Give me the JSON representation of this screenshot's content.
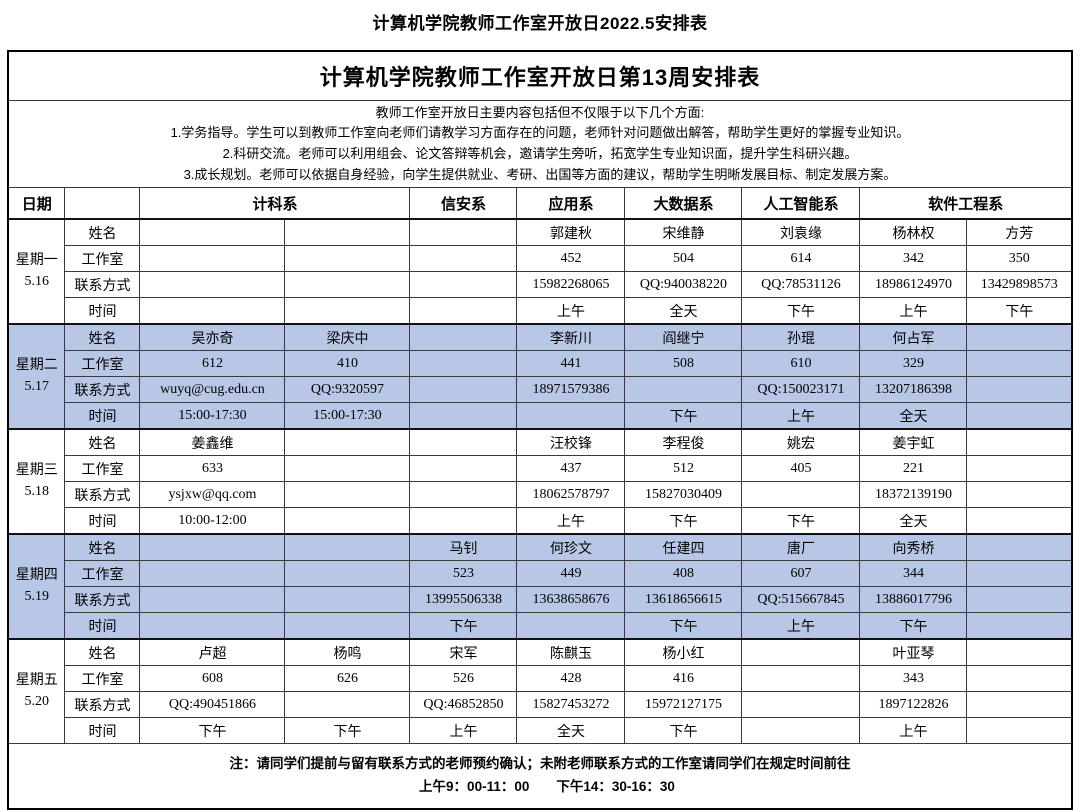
{
  "page_title": "计算机学院教师工作室开放日2022.5安排表",
  "table": {
    "title": "计算机学院教师工作室开放日第13周安排表",
    "description_lines": [
      "教师工作室开放日主要内容包括但不仅限于以下几个方面:",
      "1.学务指导。学生可以到教师工作室向老师们请教学习方面存在的问题，老师针对问题做出解答，帮助学生更好的掌握专业知识。",
      "2.科研交流。老师可以利用组会、论文答辩等机会，邀请学生旁听，拓宽学生专业知识面，提升学生科研兴趣。",
      "3.成长规划。老师可以依据自身经验，向学生提供就业、考研、出国等方面的建议，帮助学生明晰发展目标、制定发展方案。"
    ],
    "header": {
      "date_label": "日期",
      "departments": [
        {
          "label": "计科系",
          "span": 2
        },
        {
          "label": "信安系",
          "span": 1
        },
        {
          "label": "应用系",
          "span": 1
        },
        {
          "label": "大数据系",
          "span": 1
        },
        {
          "label": "人工智能系",
          "span": 1
        },
        {
          "label": "软件工程系",
          "span": 2
        }
      ]
    },
    "row_labels": [
      "姓名",
      "工作室",
      "联系方式",
      "时间"
    ],
    "highlight_color": "#b8c7e6",
    "days": [
      {
        "day": "星期一",
        "date": "5.16",
        "highlighted": false,
        "names": [
          "",
          "",
          "",
          "郭建秋",
          "宋维静",
          "刘袁缘",
          "杨林权",
          "方芳"
        ],
        "rooms": [
          "",
          "",
          "",
          "452",
          "504",
          "614",
          "342",
          "350"
        ],
        "contacts": [
          "",
          "",
          "",
          "15982268065",
          "QQ:940038220",
          "QQ:78531126",
          "18986124970",
          "13429898573"
        ],
        "times": [
          "",
          "",
          "",
          "上午",
          "全天",
          "下午",
          "上午",
          "下午"
        ]
      },
      {
        "day": "星期二",
        "date": "5.17",
        "highlighted": true,
        "names": [
          "吴亦奇",
          "梁庆中",
          "",
          "李新川",
          "阎继宁",
          "孙琨",
          "何占军",
          ""
        ],
        "rooms": [
          "612",
          "410",
          "",
          "441",
          "508",
          "610",
          "329",
          ""
        ],
        "contacts": [
          "wuyq@cug.edu.cn",
          "QQ:9320597",
          "",
          "18971579386",
          "",
          "QQ:150023171",
          "13207186398",
          ""
        ],
        "times": [
          "15:00-17:30",
          "15:00-17:30",
          "",
          "",
          "下午",
          "上午",
          "全天",
          ""
        ]
      },
      {
        "day": "星期三",
        "date": "5.18",
        "highlighted": false,
        "names": [
          "姜鑫维",
          "",
          "",
          "汪校锋",
          "李程俊",
          "姚宏",
          "姜宇虹",
          ""
        ],
        "rooms": [
          "633",
          "",
          "",
          "437",
          "512",
          "405",
          "221",
          ""
        ],
        "contacts": [
          "ysjxw@qq.com",
          "",
          "",
          "18062578797",
          "15827030409",
          "",
          "18372139190",
          ""
        ],
        "times": [
          "10:00-12:00",
          "",
          "",
          "上午",
          "下午",
          "下午",
          "全天",
          ""
        ]
      },
      {
        "day": "星期四",
        "date": "5.19",
        "highlighted": true,
        "names": [
          "",
          "",
          "马钊",
          "何珍文",
          "任建四",
          "唐厂",
          "向秀桥",
          ""
        ],
        "rooms": [
          "",
          "",
          "523",
          "449",
          "408",
          "607",
          "344",
          ""
        ],
        "contacts": [
          "",
          "",
          "13995506338",
          "13638658676",
          "13618656615",
          "QQ:515667845",
          "13886017796",
          ""
        ],
        "times": [
          "",
          "",
          "下午",
          "",
          "下午",
          "上午",
          "下午",
          ""
        ]
      },
      {
        "day": "星期五",
        "date": "5.20",
        "highlighted": false,
        "names": [
          "卢超",
          "杨鸣",
          "宋军",
          "陈麒玉",
          "杨小红",
          "",
          "叶亚琴",
          ""
        ],
        "rooms": [
          "608",
          "626",
          "526",
          "428",
          "416",
          "",
          "343",
          ""
        ],
        "contacts": [
          "QQ:490451866",
          "",
          "QQ:46852850",
          "15827453272",
          "15972127175",
          "",
          "1897122826",
          ""
        ],
        "times": [
          "下午",
          "下午",
          "上午",
          "全天",
          "下午",
          "",
          "上午",
          ""
        ]
      }
    ],
    "note_line1": "注：请同学们提前与留有联系方式的老师预约确认；未附老师联系方式的工作室请同学们在规定时间前往",
    "note_line2": "上午9：00-11：00　　下午14：30-16：30"
  }
}
